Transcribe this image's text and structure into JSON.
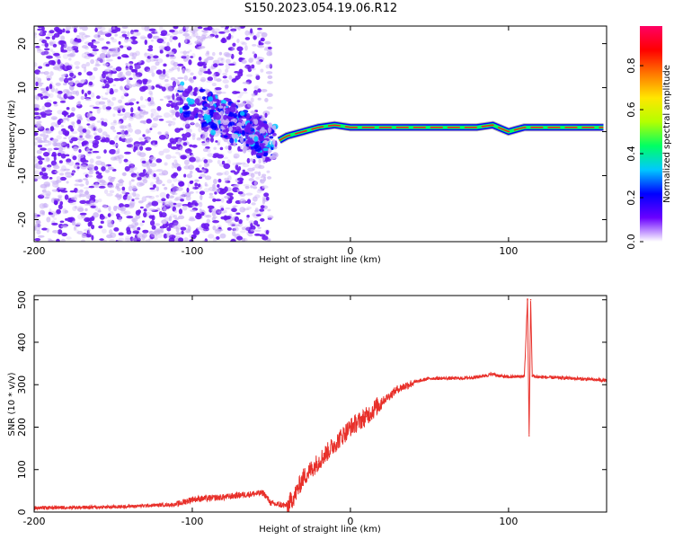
{
  "title": "S150.2023.054.19.06.R12",
  "colors": {
    "snr_line": "#e8302a",
    "scatter_dark": "#6a16f0",
    "scatter_light": "#c9b0f5",
    "frame": "#000000"
  },
  "chart_data": [
    {
      "type": "heatmap",
      "name_label": "spectrogram",
      "xlabel": "Height of straight line (km)",
      "ylabel": "Frequency (Hz)",
      "xlim": [
        -200,
        162
      ],
      "ylim": [
        -25,
        24
      ],
      "xticks": [
        -200,
        -100,
        0,
        100
      ],
      "yticks": [
        -20,
        -10,
        0,
        10,
        20
      ],
      "colorbar": {
        "label": "Normalized spectral amplitude",
        "range": [
          0,
          0.98
        ],
        "ticks": [
          "0.0",
          "0.2",
          "0.4",
          "0.6",
          "0.8"
        ],
        "colormap": [
          "#ffffff",
          "#6a00ff",
          "#0000ff",
          "#00c8ff",
          "#00ff64",
          "#b4ff00",
          "#ffe600",
          "#ff7800",
          "#ff0000",
          "#ff0064"
        ]
      },
      "ridge": {
        "description_points_x": [
          -45,
          -40,
          -30,
          -20,
          -10,
          0,
          20,
          50,
          80,
          90,
          100,
          105,
          110,
          160
        ],
        "description_points_y": [
          -2,
          -1,
          0,
          1,
          1.5,
          1,
          1,
          1,
          1,
          1.5,
          0,
          0.5,
          1,
          1
        ]
      },
      "cluster": {
        "x": [
          -110,
          -90,
          -80,
          -70,
          -60,
          -55,
          -50
        ],
        "y": [
          7,
          5,
          3,
          1,
          -1,
          -2,
          -3
        ]
      }
    },
    {
      "type": "line",
      "xlabel": "Height of straight line (km)",
      "ylabel": "SNR (10 * v/v)",
      "xlim": [
        -200,
        162
      ],
      "ylim": [
        0,
        510
      ],
      "xticks": [
        -200,
        -100,
        0,
        100
      ],
      "yticks": [
        0,
        100,
        200,
        300,
        400,
        500
      ],
      "series": [
        {
          "x": [
            -200,
            -150,
            -110,
            -100,
            -80,
            -70,
            -55,
            -50,
            -40,
            -35,
            -30,
            -20,
            -10,
            0,
            10,
            20,
            30,
            40,
            50,
            60,
            70,
            80,
            90,
            95,
            100,
            110,
            112,
            113,
            114,
            115,
            120,
            140,
            162
          ],
          "values": [
            10,
            12,
            18,
            30,
            35,
            40,
            45,
            20,
            15,
            40,
            80,
            120,
            160,
            200,
            225,
            260,
            290,
            305,
            315,
            315,
            315,
            318,
            325,
            320,
            318,
            320,
            500,
            180,
            500,
            320,
            318,
            315,
            310
          ]
        }
      ]
    }
  ]
}
